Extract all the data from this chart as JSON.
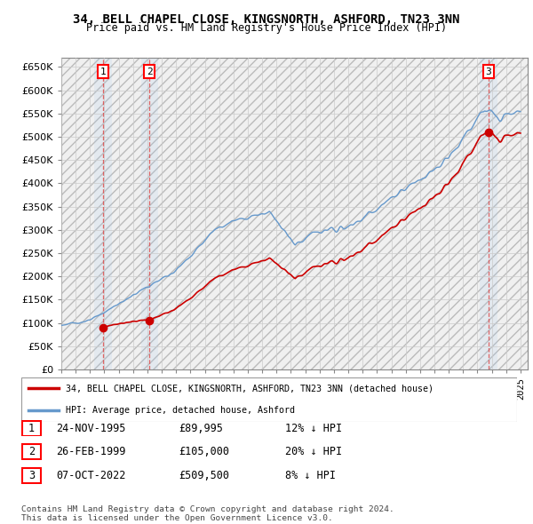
{
  "title": "34, BELL CHAPEL CLOSE, KINGSNORTH, ASHFORD, TN23 3NN",
  "subtitle": "Price paid vs. HM Land Registry's House Price Index (HPI)",
  "ylim": [
    0,
    670000
  ],
  "yticks": [
    0,
    50000,
    100000,
    150000,
    200000,
    250000,
    300000,
    350000,
    400000,
    450000,
    500000,
    550000,
    600000,
    650000
  ],
  "xlim_start": 1993.0,
  "xlim_end": 2025.5,
  "sale_dates": [
    1995.9,
    1999.15,
    2022.77
  ],
  "sale_prices": [
    89995,
    105000,
    509500
  ],
  "sale_labels": [
    "1",
    "2",
    "3"
  ],
  "property_line_color": "#cc0000",
  "hpi_line_color": "#6699cc",
  "grid_color": "#cccccc",
  "sale_vline_color": "#cc0000",
  "shade_color": "#ddeeff",
  "legend_property": "34, BELL CHAPEL CLOSE, KINGSNORTH, ASHFORD, TN23 3NN (detached house)",
  "legend_hpi": "HPI: Average price, detached house, Ashford",
  "table_rows": [
    [
      "1",
      "24-NOV-1995",
      "£89,995",
      "12% ↓ HPI"
    ],
    [
      "2",
      "26-FEB-1999",
      "£105,000",
      "20% ↓ HPI"
    ],
    [
      "3",
      "07-OCT-2022",
      "£509,500",
      "8% ↓ HPI"
    ]
  ],
  "footnote": "Contains HM Land Registry data © Crown copyright and database right 2024.\nThis data is licensed under the Open Government Licence v3.0."
}
